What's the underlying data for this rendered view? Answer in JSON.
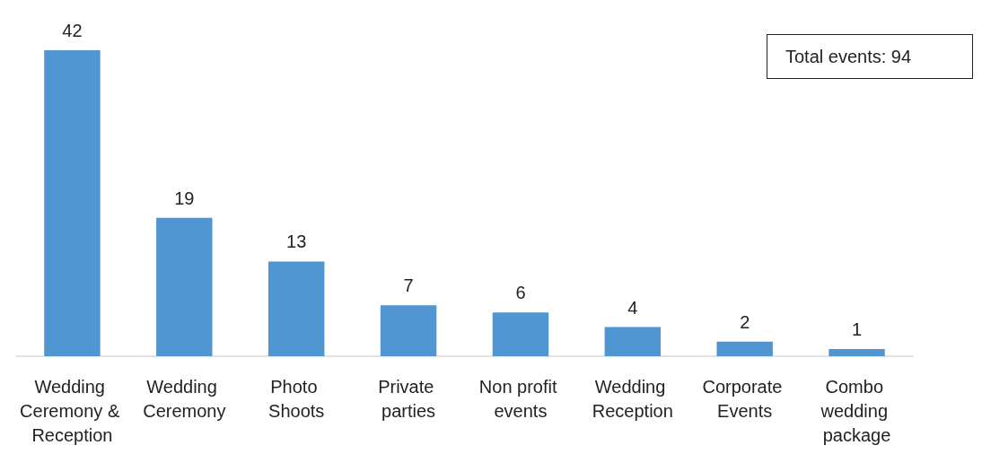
{
  "chart_data": {
    "type": "bar",
    "categories": [
      "Wedding Ceremony & Reception",
      "Wedding Ceremony",
      "Photo Shoots",
      "Private parties",
      "Non profit events",
      "Wedding Reception",
      "Corporate Events",
      "Combo wedding package"
    ],
    "values": [
      42,
      19,
      13,
      7,
      6,
      4,
      2,
      1
    ],
    "color": "#5096d2",
    "data_labels": true,
    "grid": false,
    "annotations": [
      "Total events: 94"
    ]
  }
}
